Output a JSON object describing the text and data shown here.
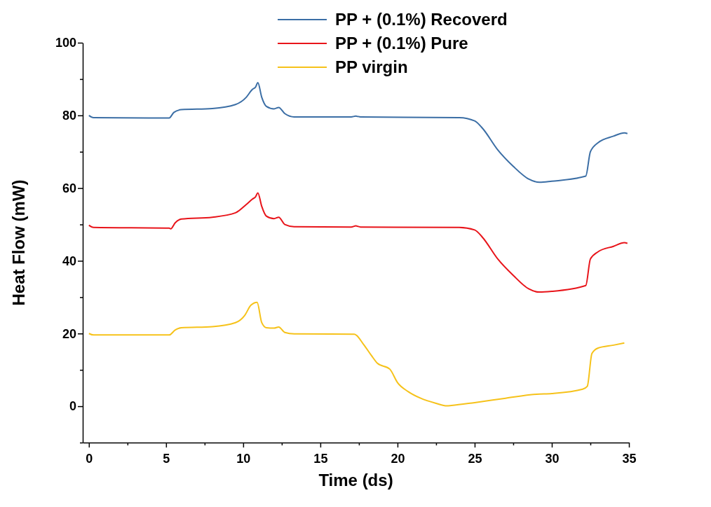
{
  "chart_data": {
    "type": "line",
    "xlabel": "Time (ds)",
    "ylabel": "Heat Flow (mW)",
    "xlim": [
      -0.4,
      35
    ],
    "ylim": [
      -10,
      100
    ],
    "xticks": [
      0,
      {
        "value": 2.5,
        "label": null
      },
      5,
      {
        "value": 7.5,
        "label": null
      },
      10,
      {
        "value": 12.5,
        "label": null
      },
      15,
      {
        "value": 17.5,
        "label": null
      },
      20,
      {
        "value": 22.5,
        "label": null
      },
      25,
      {
        "value": 27.5,
        "label": null
      },
      30,
      {
        "value": 32.5,
        "label": null
      },
      35
    ],
    "yticks": [
      {
        "value": -10,
        "label": null
      },
      0,
      {
        "value": 10,
        "label": null
      },
      20,
      {
        "value": 30,
        "label": null
      },
      40,
      {
        "value": 50,
        "label": null
      },
      60,
      {
        "value": 70,
        "label": null
      },
      80,
      {
        "value": 90,
        "label": null
      },
      100
    ],
    "legend": "top right",
    "grid": false,
    "marker": "none",
    "line_style": "solid",
    "series": [
      {
        "name": "PP + (0.1%) Recoverd",
        "color": "#3b6ea5",
        "x": [
          0,
          0.3,
          5.2,
          5.5,
          6,
          8,
          9.5,
          10.2,
          10.6,
          10.8,
          10.95,
          11.2,
          11.5,
          12,
          12.3,
          12.7,
          13.3,
          17,
          17.3,
          17.6,
          24,
          25,
          25.5,
          26.5,
          27.5,
          28.5,
          29.2,
          30,
          32.2,
          32.5,
          33,
          34,
          34.7,
          34.9
        ],
        "values": [
          80,
          79.4,
          79.3,
          80.8,
          81.6,
          81.9,
          83,
          85,
          87.2,
          87.8,
          89,
          85,
          82.5,
          81.8,
          82.2,
          80.5,
          79.6,
          79.6,
          79.8,
          79.6,
          79.4,
          78.5,
          76.5,
          70.5,
          66,
          62.5,
          61.6,
          61.9,
          63.3,
          70,
          72.5,
          74.3,
          75.2,
          75
        ]
      },
      {
        "name": "PP + (0.1%) Pure",
        "color": "#e8141a",
        "x": [
          0,
          0.3,
          5.2,
          5.3,
          5.6,
          6,
          8,
          9.5,
          10.2,
          10.6,
          10.8,
          10.95,
          11.2,
          11.5,
          12,
          12.3,
          12.7,
          13.3,
          17,
          17.3,
          17.6,
          24,
          25,
          25.5,
          26.5,
          27.5,
          28.5,
          29.2,
          30,
          32.2,
          32.5,
          33,
          34,
          34.7,
          34.9
        ],
        "values": [
          49.8,
          49.2,
          49,
          48.8,
          50.5,
          51.5,
          52,
          53.2,
          55.5,
          57,
          57.6,
          58.7,
          55,
          52.3,
          51.6,
          52,
          50,
          49.4,
          49.3,
          49.6,
          49.3,
          49.2,
          48.5,
          46.5,
          40.5,
          36,
          32.3,
          31.4,
          31.6,
          33.2,
          40.5,
          42.5,
          44,
          45,
          44.8
        ]
      },
      {
        "name": "PP virgin",
        "color": "#f6c21a",
        "x": [
          0,
          0.3,
          5.2,
          5.6,
          6,
          8,
          9.5,
          10.1,
          10.5,
          10.9,
          11.2,
          11.5,
          12,
          12.3,
          12.7,
          13.3,
          17.2,
          17.8,
          18.3,
          18.7,
          19.5,
          20,
          20.7,
          21.5,
          22.5,
          23.2,
          23.5,
          25,
          27,
          29,
          30,
          32,
          32.3,
          32.6,
          33,
          34,
          34.7
        ],
        "values": [
          20,
          19.6,
          19.6,
          21,
          21.6,
          21.9,
          23,
          25,
          27.8,
          28.6,
          23,
          21.6,
          21.5,
          21.8,
          20.3,
          19.9,
          19.8,
          17,
          14,
          11.8,
          10.2,
          6.5,
          4,
          2.2,
          0.8,
          0.1,
          0.2,
          1,
          2.2,
          3.3,
          3.5,
          4.7,
          5.5,
          14.5,
          16,
          16.8,
          17.4
        ]
      }
    ]
  }
}
